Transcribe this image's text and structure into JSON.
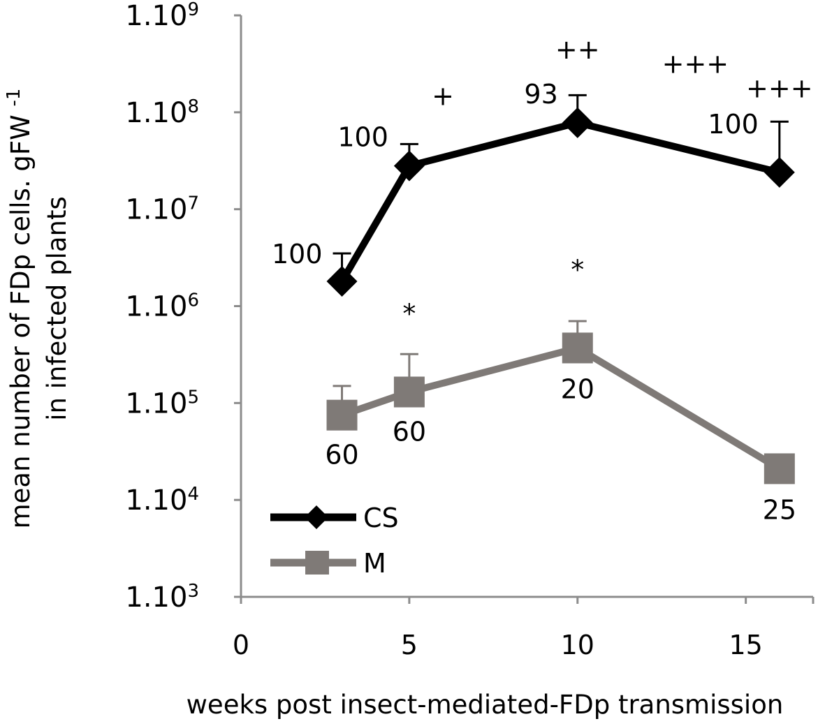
{
  "chart_data": {
    "type": "line",
    "title": "",
    "xlabel": "weeks post insect-mediated-FDp transmission",
    "ylabel": {
      "line1": "mean number of FDp cells. gFW",
      "superscript": "-1",
      "line2": "in infected plants"
    },
    "x_axis": {
      "range": [
        0,
        17
      ],
      "ticks": [
        {
          "value": 0,
          "label": "0"
        },
        {
          "value": 5,
          "label": "5"
        },
        {
          "value": 10,
          "label": "10"
        },
        {
          "value": 15,
          "label": "15"
        }
      ]
    },
    "y_axis": {
      "scale": "log",
      "range": [
        1000,
        1000000000
      ],
      "ticks": [
        {
          "value": 1000,
          "base": "1.10",
          "exp": "3"
        },
        {
          "value": 10000,
          "base": "1.10",
          "exp": "4"
        },
        {
          "value": 100000,
          "base": "1.10",
          "exp": "5"
        },
        {
          "value": 1000000,
          "base": "1.10",
          "exp": "6"
        },
        {
          "value": 10000000,
          "base": "1.10",
          "exp": "7"
        },
        {
          "value": 100000000,
          "base": "1.10",
          "exp": "8"
        },
        {
          "value": 1000000000,
          "base": "1.10",
          "exp": "9"
        }
      ]
    },
    "series": [
      {
        "name": "CS",
        "color": "#000000",
        "marker": "diamond",
        "points": [
          {
            "x": 3,
            "y": 1800000,
            "err": 3500000,
            "label": "100"
          },
          {
            "x": 5,
            "y": 28000000,
            "err": 47000000,
            "label": "100"
          },
          {
            "x": 10,
            "y": 78000000,
            "err": 150000000,
            "label": "93"
          },
          {
            "x": 16,
            "y": 24000000,
            "err": 80000000,
            "label": "100"
          }
        ]
      },
      {
        "name": "M",
        "color": "#7f7a77",
        "marker": "square",
        "points": [
          {
            "x": 3,
            "y": 75000,
            "err": 150000,
            "label": "60"
          },
          {
            "x": 5,
            "y": 130000,
            "err": 320000,
            "label": "60"
          },
          {
            "x": 10,
            "y": 370000,
            "err": 700000,
            "label": "20"
          },
          {
            "x": 16,
            "y": 21000,
            "err": null,
            "label": "25"
          }
        ]
      }
    ],
    "annotations": [
      {
        "text": "+",
        "x": 6,
        "y": 150000000
      },
      {
        "text": "++",
        "x": 10,
        "y": 450000000
      },
      {
        "text": "+++",
        "x": 13.5,
        "y": 320000000
      },
      {
        "text": "+++",
        "x": 16,
        "y": 180000000
      },
      {
        "text": "*",
        "x": 5,
        "y": 850000
      },
      {
        "text": "*",
        "x": 10,
        "y": 2400000
      }
    ],
    "legend": {
      "position": "bottom-left",
      "entries": [
        "CS",
        "M"
      ]
    }
  }
}
